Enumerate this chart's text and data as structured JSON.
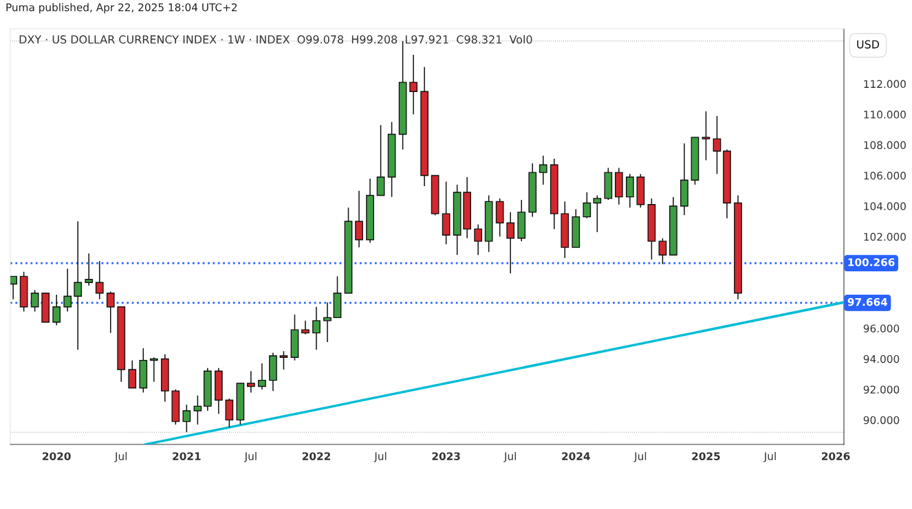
{
  "chart_data": {
    "type": "candlestick",
    "title": "DXY · US DOLLAR CURRENCY INDEX · 1W · INDEX  O99.078  H99.208  L97.921  C98.321  Vol0",
    "annotations": [
      "Puma published, Apr 22, 2025 18:04 UTC+2",
      "USD"
    ],
    "series": [
      {
        "x": [
          "2019-09",
          "2019-10",
          "2019-11",
          "2019-12",
          "2020-01",
          "2020-02",
          "2020-03",
          "2020-04",
          "2020-05",
          "2020-06",
          "2020-07",
          "2020-08",
          "2020-09",
          "2020-10",
          "2020-11",
          "2020-12",
          "2021-01",
          "2021-02",
          "2021-03",
          "2021-04",
          "2021-05",
          "2021-06",
          "2021-07",
          "2021-08",
          "2021-09",
          "2021-10",
          "2021-11",
          "2021-12",
          "2022-01",
          "2022-02",
          "2022-03",
          "2022-04",
          "2022-05",
          "2022-06",
          "2022-07",
          "2022-08",
          "2022-09",
          "2022-10",
          "2022-11",
          "2022-12",
          "2023-01",
          "2023-02",
          "2023-03",
          "2023-04",
          "2023-05",
          "2023-06",
          "2023-07",
          "2023-08",
          "2023-09",
          "2023-10",
          "2023-11",
          "2023-12",
          "2024-01",
          "2024-02",
          "2024-03",
          "2024-04",
          "2024-05",
          "2024-06",
          "2024-07",
          "2024-08",
          "2024-09",
          "2024-10",
          "2024-11",
          "2024-12",
          "2025-01",
          "2025-02",
          "2025-03",
          "2025-04"
        ],
        "ohlc": [
          [
            98.9,
            99.4,
            97.9,
            99.4
          ],
          [
            99.4,
            99.7,
            97.1,
            97.4
          ],
          [
            97.4,
            98.5,
            97.1,
            98.3
          ],
          [
            98.3,
            98.3,
            96.4,
            96.4
          ],
          [
            96.4,
            98.2,
            96.2,
            97.4
          ],
          [
            97.4,
            99.9,
            97.1,
            98.1
          ],
          [
            98.1,
            103.0,
            94.6,
            99.0
          ],
          [
            99.0,
            100.9,
            98.8,
            99.2
          ],
          [
            99.0,
            100.4,
            97.9,
            98.3
          ],
          [
            98.3,
            98.4,
            95.7,
            97.4
          ],
          [
            97.4,
            97.4,
            92.5,
            93.3
          ],
          [
            93.3,
            93.9,
            92.1,
            92.1
          ],
          [
            92.1,
            94.7,
            91.8,
            93.9
          ],
          [
            93.9,
            94.1,
            92.5,
            94.0
          ],
          [
            94.0,
            94.3,
            91.2,
            91.9
          ],
          [
            91.9,
            92.0,
            89.7,
            89.9
          ],
          [
            89.9,
            91.0,
            89.2,
            90.6
          ],
          [
            90.6,
            91.6,
            89.7,
            90.9
          ],
          [
            90.9,
            93.4,
            90.6,
            93.2
          ],
          [
            93.2,
            93.4,
            90.4,
            91.3
          ],
          [
            91.3,
            91.4,
            89.5,
            90.0
          ],
          [
            90.0,
            92.4,
            89.7,
            92.4
          ],
          [
            92.4,
            93.2,
            91.8,
            92.2
          ],
          [
            92.2,
            93.7,
            92.0,
            92.6
          ],
          [
            92.6,
            94.4,
            91.9,
            94.2
          ],
          [
            94.2,
            94.5,
            93.3,
            94.1
          ],
          [
            94.1,
            96.9,
            93.9,
            95.9
          ],
          [
            95.9,
            96.5,
            95.6,
            95.7
          ],
          [
            95.7,
            97.4,
            94.6,
            96.5
          ],
          [
            96.5,
            97.7,
            95.1,
            96.7
          ],
          [
            96.7,
            99.4,
            96.7,
            98.3
          ],
          [
            98.3,
            103.9,
            98.3,
            103.0
          ],
          [
            103.0,
            105.0,
            101.3,
            101.8
          ],
          [
            101.8,
            105.8,
            101.6,
            104.7
          ],
          [
            104.7,
            109.3,
            104.7,
            105.9
          ],
          [
            105.9,
            109.5,
            104.6,
            108.7
          ],
          [
            108.7,
            114.8,
            107.7,
            112.1
          ],
          [
            112.1,
            113.9,
            110.0,
            111.5
          ],
          [
            111.5,
            113.1,
            105.3,
            106.0
          ],
          [
            106.0,
            106.0,
            103.4,
            103.5
          ],
          [
            103.5,
            105.6,
            101.5,
            102.1
          ],
          [
            102.1,
            105.4,
            100.8,
            104.9
          ],
          [
            104.9,
            105.9,
            101.9,
            102.5
          ],
          [
            102.5,
            102.8,
            100.8,
            101.7
          ],
          [
            101.7,
            104.7,
            101.0,
            104.3
          ],
          [
            104.3,
            104.5,
            102.0,
            102.9
          ],
          [
            102.9,
            103.6,
            99.6,
            101.9
          ],
          [
            101.9,
            104.4,
            101.7,
            103.6
          ],
          [
            103.6,
            106.8,
            103.3,
            106.2
          ],
          [
            106.2,
            107.3,
            105.4,
            106.7
          ],
          [
            106.7,
            107.1,
            102.5,
            103.5
          ],
          [
            103.5,
            104.3,
            100.6,
            101.3
          ],
          [
            101.3,
            103.8,
            101.3,
            103.3
          ],
          [
            103.3,
            104.9,
            103.2,
            104.2
          ],
          [
            104.2,
            104.7,
            102.3,
            104.5
          ],
          [
            104.5,
            106.5,
            104.4,
            106.2
          ],
          [
            106.2,
            106.5,
            104.1,
            104.6
          ],
          [
            104.6,
            106.1,
            103.9,
            105.9
          ],
          [
            105.9,
            106.1,
            103.9,
            104.1
          ],
          [
            104.1,
            104.5,
            100.5,
            101.7
          ],
          [
            101.7,
            101.9,
            100.2,
            100.8
          ],
          [
            100.8,
            104.6,
            100.8,
            104.0
          ],
          [
            104.0,
            108.1,
            103.4,
            105.7
          ],
          [
            105.7,
            108.5,
            105.4,
            108.5
          ],
          [
            108.5,
            110.2,
            107.0,
            108.4
          ],
          [
            108.4,
            109.9,
            106.1,
            107.6
          ],
          [
            107.6,
            107.7,
            103.2,
            104.2
          ],
          [
            104.2,
            104.7,
            97.9,
            98.3
          ]
        ],
        "colors": [
          "#3f9e43",
          "#d3282e",
          "#3f9e43",
          "#d3282e",
          "#3f9e43",
          "#3f9e43",
          "#3f9e43",
          "#3f9e43",
          "#d3282e",
          "#d3282e",
          "#d3282e",
          "#d3282e",
          "#3f9e43",
          "#3f9e43",
          "#d3282e",
          "#d3282e",
          "#3f9e43",
          "#3f9e43",
          "#3f9e43",
          "#d3282e",
          "#d3282e",
          "#3f9e43",
          "#d3282e",
          "#3f9e43",
          "#3f9e43",
          "#d3282e",
          "#3f9e43",
          "#d3282e",
          "#3f9e43",
          "#3f9e43",
          "#3f9e43",
          "#3f9e43",
          "#d3282e",
          "#3f9e43",
          "#3f9e43",
          "#3f9e43",
          "#3f9e43",
          "#d3282e",
          "#d3282e",
          "#d3282e",
          "#d3282e",
          "#3f9e43",
          "#d3282e",
          "#d3282e",
          "#3f9e43",
          "#d3282e",
          "#d3282e",
          "#3f9e43",
          "#3f9e43",
          "#3f9e43",
          "#d3282e",
          "#d3282e",
          "#3f9e43",
          "#3f9e43",
          "#3f9e43",
          "#3f9e43",
          "#d3282e",
          "#3f9e43",
          "#d3282e",
          "#d3282e",
          "#d3282e",
          "#3f9e43",
          "#3f9e43",
          "#3f9e43",
          "#d3282e",
          "#d3282e",
          "#d3282e",
          "#d3282e"
        ]
      },
      {
        "type": "line",
        "color": "#00bcd4",
        "x": [
          "2020-09-07",
          "2026-01-24"
        ],
        "values": [
          88.4,
          97.7
        ]
      }
    ],
    "xlim": [
      "2019-08-24",
      "2026-01-24"
    ],
    "xticks": [
      {
        "value": "2020-01-01",
        "label": "2020"
      },
      {
        "value": "2020-07-01",
        "label": "Jul"
      },
      {
        "value": "2021-01-01",
        "label": "2021"
      },
      {
        "value": "2021-07-01",
        "label": "Jul"
      },
      {
        "value": "2022-01-01",
        "label": "2022"
      },
      {
        "value": "2022-07-01",
        "label": "Jul"
      },
      {
        "value": "2023-01-01",
        "label": "2023"
      },
      {
        "value": "2023-07-01",
        "label": "Jul"
      },
      {
        "value": "2024-01-01",
        "label": "2024"
      },
      {
        "value": "2024-07-01",
        "label": "Jul"
      },
      {
        "value": "2025-01-01",
        "label": "2025"
      },
      {
        "value": "2025-07-01",
        "label": "Jul"
      },
      {
        "value": "2026-01-01",
        "label": "2026"
      }
    ],
    "ylim": [
      88.4,
      115.6
    ],
    "yticks": [
      {
        "value": 90,
        "label": "90.000"
      },
      {
        "value": 92,
        "label": "92.000"
      },
      {
        "value": 94,
        "label": "94.000"
      },
      {
        "value": 96,
        "label": "96.000"
      },
      {
        "value": 102,
        "label": "102.000"
      },
      {
        "value": 104,
        "label": "104.000"
      },
      {
        "value": 106,
        "label": "106.000"
      },
      {
        "value": 108,
        "label": "108.000"
      },
      {
        "value": 110,
        "label": "110.000"
      },
      {
        "value": 112,
        "label": "112.000"
      }
    ],
    "ref_lines": [
      {
        "axis": "y",
        "value": 100.266,
        "label": "100.266",
        "color": "#2962ff",
        "line_style": "dotted"
      },
      {
        "axis": "y",
        "value": 97.664,
        "label": "97.664",
        "color": "#2962ff",
        "line_style": "dotted"
      },
      {
        "axis": "y",
        "value": 114.8,
        "label": null,
        "color": "#9e9e9e",
        "line_style": "dotted"
      },
      {
        "axis": "y",
        "value": 89.2,
        "label": null,
        "color": "#9e9e9e",
        "line_style": "dotted"
      }
    ],
    "grid": false,
    "legend": false
  }
}
